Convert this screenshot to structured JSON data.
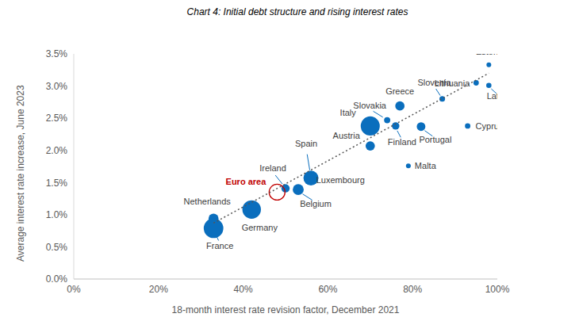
{
  "chart_data": {
    "type": "scatter",
    "title": "Chart 4: Initial debt structure and rising interest rates",
    "x_label": "18-month interest rate revision factor, December 2021",
    "y_label": "Average interest rate increase, June 2023",
    "xlim": [
      0,
      100
    ],
    "xticks": [
      {
        "value": 0,
        "label": "0%"
      },
      {
        "value": 20,
        "label": "20%"
      },
      {
        "value": 40,
        "label": "40%"
      },
      {
        "value": 60,
        "label": "60%"
      },
      {
        "value": 80,
        "label": "80%"
      },
      {
        "value": 100,
        "label": "100%"
      }
    ],
    "ylim": [
      0,
      3.5
    ],
    "yticks": [
      {
        "value": 0,
        "label": "0.0%"
      },
      {
        "value": 0.5,
        "label": "0.5%"
      },
      {
        "value": 1,
        "label": "1.0%"
      },
      {
        "value": 1.5,
        "label": "1.5%"
      },
      {
        "value": 2,
        "label": "2.0%"
      },
      {
        "value": 2.5,
        "label": "2.5%"
      },
      {
        "value": 3,
        "label": "3.0%"
      },
      {
        "value": 3.5,
        "label": "3.5%"
      }
    ],
    "grid": false,
    "series": [
      {
        "labels": [
          "Estonia",
          "Lithuania",
          "Latvia",
          "Slovenia",
          "Greece",
          "Slovakia",
          "Italy",
          "Finland",
          "Portugal",
          "Cyprus",
          "Austria",
          "Malta",
          "Spain",
          "Luxembourg",
          "Ireland",
          "Belgium",
          "Germany",
          "Netherlands",
          "France"
        ],
        "x": [
          98,
          95,
          98,
          87,
          77,
          74,
          70,
          76,
          82,
          93,
          70,
          79,
          56,
          55,
          50,
          53,
          42,
          33,
          33
        ],
        "y": [
          3.33,
          3.05,
          3.01,
          2.8,
          2.69,
          2.47,
          2.38,
          2.38,
          2.37,
          2.38,
          2.07,
          1.76,
          1.57,
          1.55,
          1.41,
          1.39,
          1.08,
          0.94,
          0.79
        ],
        "size": [
          8,
          25,
          20,
          35,
          350,
          60,
          2800,
          150,
          270,
          27,
          350,
          9,
          1500,
          30,
          230,
          600,
          2600,
          450,
          3000
        ],
        "color": "#0a6ebd",
        "marker": "circle"
      },
      {
        "name": "Euro area",
        "x": [
          48
        ],
        "y": [
          1.35
        ],
        "color": "#c00000",
        "marker": "circle-open"
      },
      {
        "type": "line",
        "x": [
          33,
          98
        ],
        "y": [
          0.87,
          3.2
        ],
        "color": "#555555",
        "line_style": "dotted"
      }
    ]
  }
}
